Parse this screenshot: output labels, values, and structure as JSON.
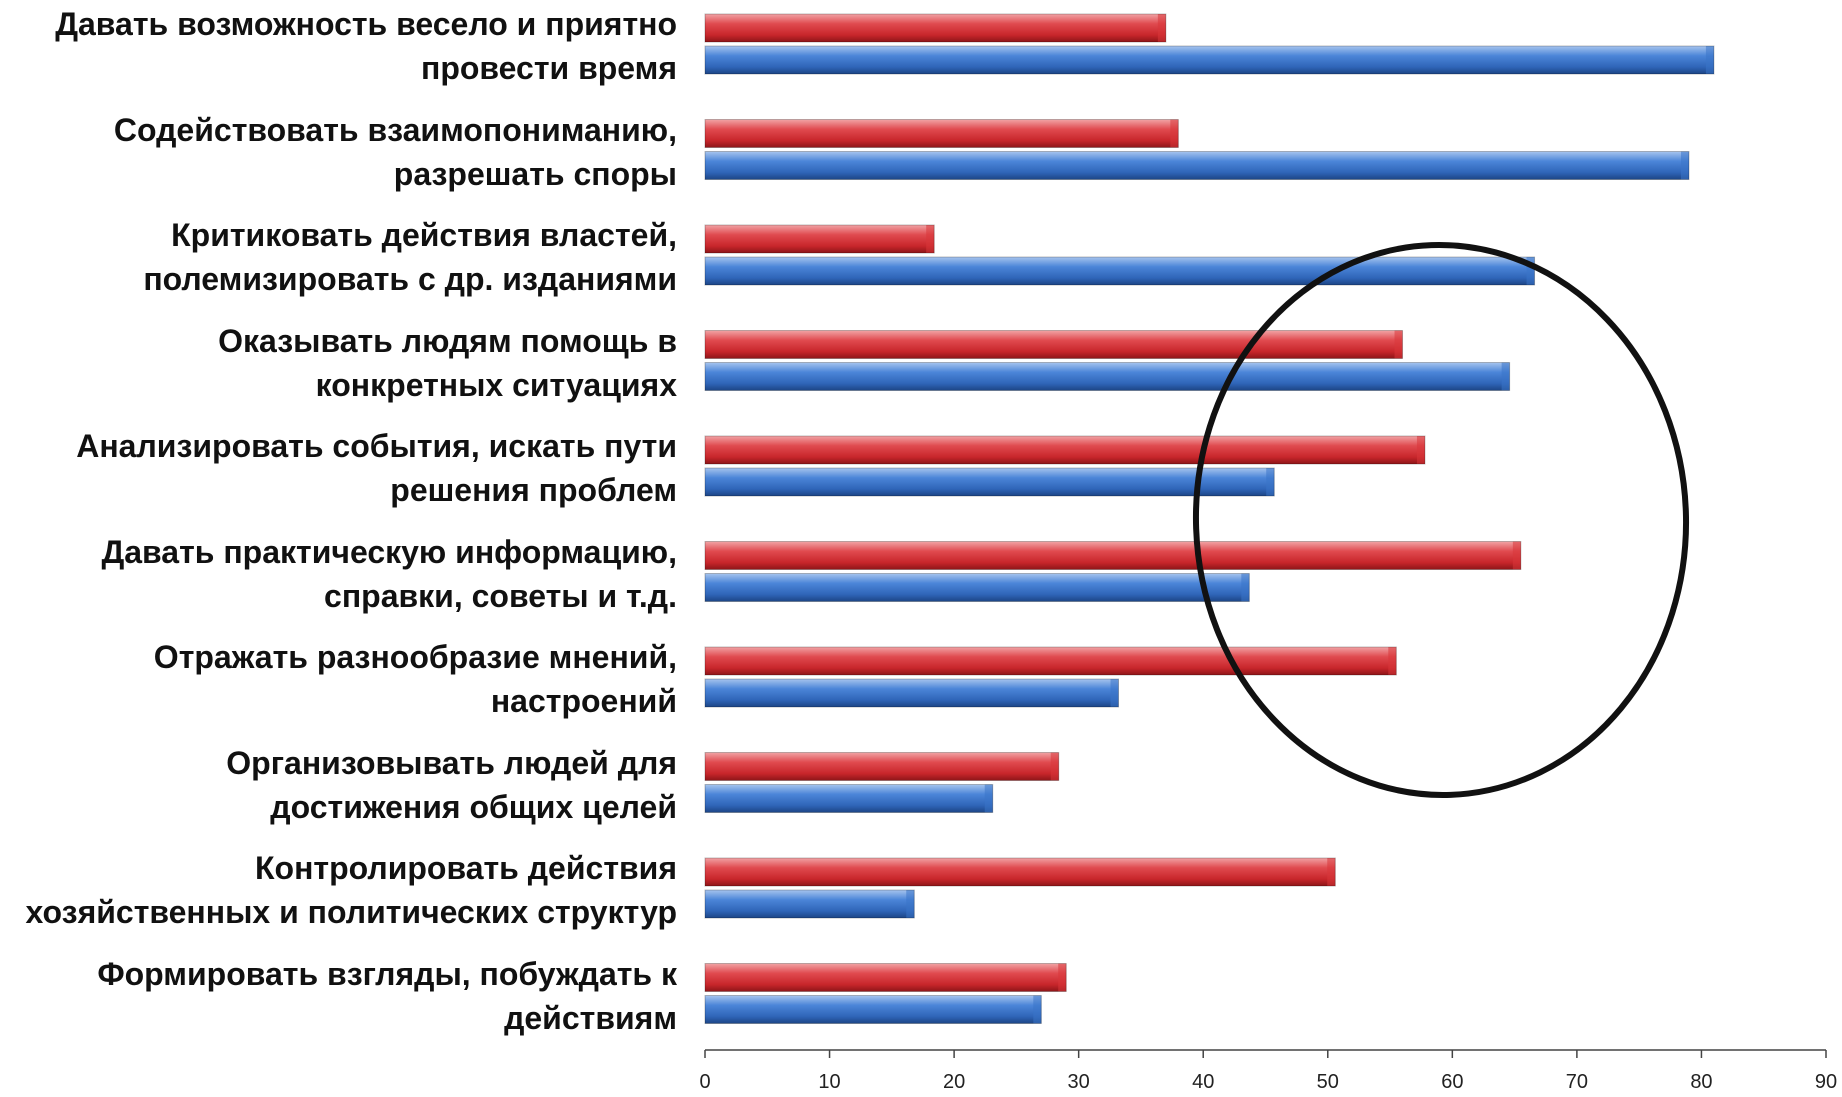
{
  "chart_data": {
    "type": "bar",
    "orientation": "horizontal",
    "categories": [
      "Давать возможность весело и приятно\nпровести время",
      "Содействовать взаимопониманию,\nразрешать споры",
      "Критиковать действия властей,\nполемизировать с др. изданиями",
      "Оказывать людям помощь в\nконкретных ситуациях",
      "Анализировать события, искать пути\nрешения проблем",
      "Давать практическую информацию,\nсправки, советы и т.д.",
      "Отражать разнообразие мнений,\nнастроений",
      "Организовывать людей для\nдостижения общих целей",
      "Контролировать действия\nхозяйственных и политических структур",
      "Формировать взгляды, побуждать к\nдействиям"
    ],
    "series": [
      {
        "color": "#d9363b",
        "values": [
          37,
          38,
          18.4,
          56,
          57.8,
          65.5,
          55.5,
          28.4,
          50.6,
          29
        ]
      },
      {
        "color": "#3b74c9",
        "values": [
          81,
          79,
          66.6,
          64.6,
          45.7,
          43.7,
          33.2,
          23.1,
          16.8,
          27
        ]
      }
    ],
    "xlim": [
      0,
      90
    ],
    "xticks": [
      0,
      10,
      20,
      30,
      40,
      50,
      60,
      70,
      80,
      90
    ],
    "title": "",
    "xlabel": "",
    "ylabel": "",
    "grid": false,
    "annotation": "ellipse"
  }
}
